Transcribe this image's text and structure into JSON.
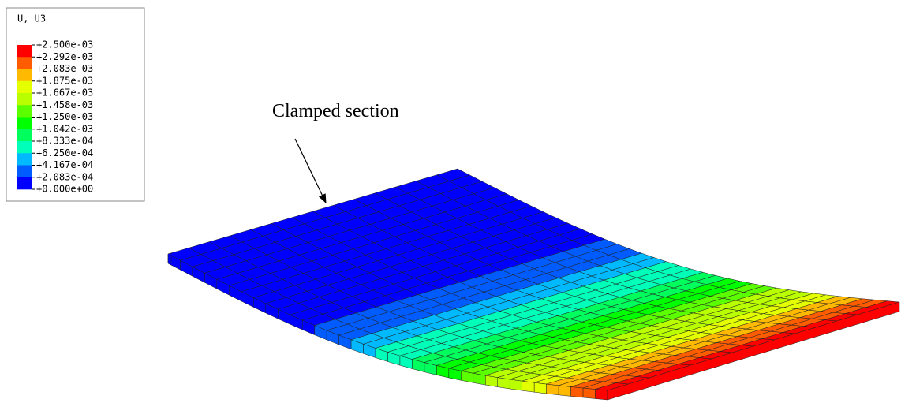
{
  "legend": {
    "title": "U, U3",
    "labels": [
      "+2.500e-03",
      "+2.292e-03",
      "+2.083e-03",
      "+1.875e-03",
      "+1.667e-03",
      "+1.458e-03",
      "+1.250e-03",
      "+1.042e-03",
      "+8.333e-04",
      "+6.250e-04",
      "+4.167e-04",
      "+2.083e-04",
      "+0.000e+00"
    ],
    "colors": [
      "#ff0000",
      "#ff5c00",
      "#ffb900",
      "#e3ff00",
      "#b9ff00",
      "#5cff00",
      "#00ff00",
      "#00ff5c",
      "#00ffb9",
      "#00b9ff",
      "#005cff",
      "#0000ff"
    ]
  },
  "annotation": "Clamped section"
}
